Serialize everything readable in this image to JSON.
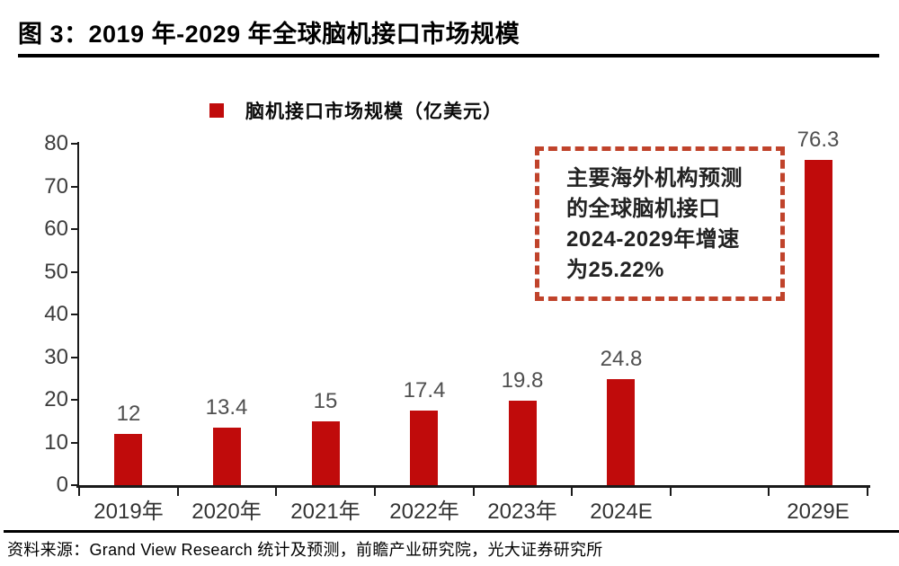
{
  "header": {
    "title": "图 3：2019 年-2029 年全球脑机接口市场规模"
  },
  "chart_data": {
    "type": "bar",
    "title": "图 3：2019 年-2029 年全球脑机接口市场规模",
    "legend": "脑机接口市场规模（亿美元）",
    "legend_position": "top",
    "categories": [
      "2019年",
      "2020年",
      "2021年",
      "2022年",
      "2023年",
      "2024E",
      "",
      "2029E"
    ],
    "values": [
      12,
      13.4,
      15,
      17.4,
      19.8,
      24.8,
      null,
      76.3
    ],
    "xlabel": "",
    "ylabel": "",
    "ylim": [
      0,
      80
    ],
    "ytick_step": 10,
    "ytick_labels": [
      "0",
      "10",
      "20",
      "30",
      "40",
      "50",
      "60",
      "70",
      "80"
    ],
    "grid": false,
    "bar_color": "#c00b0b",
    "value_label_color": "#4f4f4f",
    "axis_color": "#1a1a1a"
  },
  "annotation": {
    "text": "主要海外机构预测\n的全球脑机接口\n2024-2029年增速\n为25.22%",
    "border_color": "#c0432b"
  },
  "footer": {
    "source": "资料来源：Grand View Research 统计及预测，前瞻产业研究院，光大证券研究所"
  }
}
